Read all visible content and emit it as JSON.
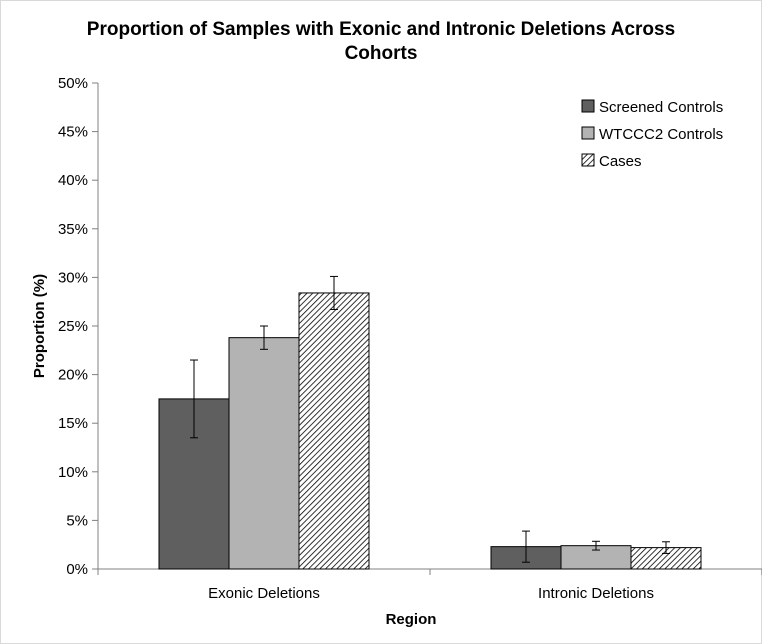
{
  "chart_data": {
    "type": "bar",
    "title": "Proportion of Samples with Exonic and Intronic Deletions Across Cohorts",
    "xlabel": "Region",
    "ylabel": "Proportion (%)",
    "ylim": [
      0,
      50
    ],
    "yticks": [
      "0%",
      "5%",
      "10%",
      "15%",
      "20%",
      "25%",
      "30%",
      "35%",
      "40%",
      "45%",
      "50%"
    ],
    "categories": [
      "Exonic Deletions",
      "Intronic Deletions"
    ],
    "series": [
      {
        "name": "Screened Controls",
        "values": [
          17.5,
          2.3
        ],
        "error": [
          4.0,
          1.6
        ],
        "color": "#5f5f5f",
        "pattern": "solid"
      },
      {
        "name": "WTCCC2 Controls",
        "values": [
          23.8,
          2.4
        ],
        "error": [
          1.2,
          0.45
        ],
        "color": "#b3b3b3",
        "pattern": "solid"
      },
      {
        "name": "Cases",
        "values": [
          28.4,
          2.2
        ],
        "error": [
          1.7,
          0.6
        ],
        "color": "#ffffff",
        "pattern": "diagonal-hatch"
      }
    ],
    "grid": false,
    "legend": "top-right"
  }
}
